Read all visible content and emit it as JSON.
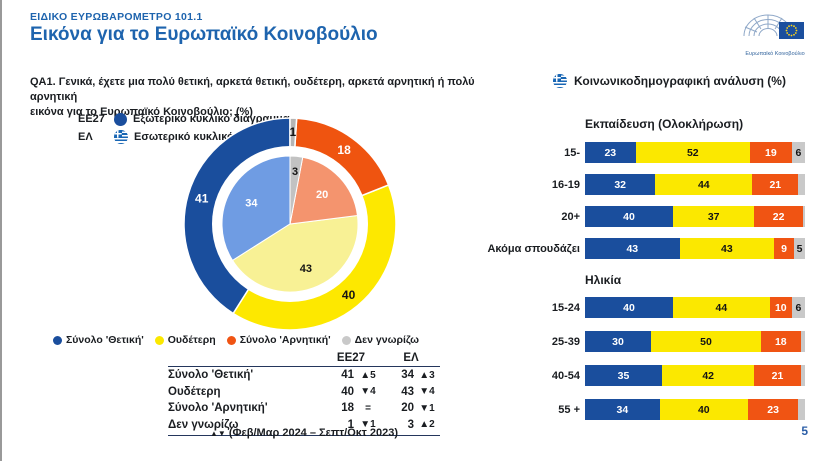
{
  "header": {
    "kicker": "ΕΙΔΙΚΟ ΕΥΡΩΒΑΡΟΜΕΤΡΟ 101.1",
    "title": "Εικόνα για το Ευρωπαϊκό Κοινοβούλιο",
    "logo_caption": "Ευρωπαϊκό Κοινοβούλιο"
  },
  "question": {
    "line1": "QA1. Γενικά, έχετε μια πολύ θετική, αρκετά θετική, ουδέτερη, αρκετά αρνητική ή πολύ αρνητική",
    "line2": "εικόνα για το Ευρωπαϊκό Κοινοβούλιο; (%)"
  },
  "donut_legend": [
    {
      "label": "ΕΕ27",
      "icon": "eu-dot",
      "text": "Εξωτερικό κυκλικό διάγραμμα"
    },
    {
      "label": "ΕΛ",
      "icon": "greek-flag",
      "text": "Εσωτερικό κυκλικό διάγραμμα"
    }
  ],
  "colors": {
    "brand_blue": "#1e64ae",
    "series": [
      "#1a4e9d",
      "#fbe800",
      "#f05413",
      "#c9c9c9"
    ],
    "donut_outer": [
      "#1a4e9d",
      "#fde800",
      "#ef5410",
      "#b5b5b5"
    ],
    "donut_inner": [
      "#6f9ce3",
      "#f8f195",
      "#f4946e",
      "#c2c2c2"
    ]
  },
  "chart_data": [
    {
      "type": "pie",
      "name": "image-of-european-parliament",
      "legend": [
        "Σύνολο 'Θετική'",
        "Ουδέτερη",
        "Σύνολο 'Αρνητική'",
        "Δεν γνωρίζω"
      ],
      "outer_ring": {
        "label": "ΕΕ27",
        "values": [
          41,
          40,
          18,
          1
        ]
      },
      "inner_ring": {
        "label": "ΕΛ",
        "values": [
          34,
          43,
          20,
          3
        ]
      }
    },
    {
      "type": "bar",
      "stacked": true,
      "name": "sociodemographic-analysis",
      "title": "Κοινωνικοδημογραφική ανάλυση (%)",
      "series_names": [
        "Σύνολο 'Θετική'",
        "Ουδέτερη",
        "Σύνολο 'Αρνητική'",
        "Δεν γνωρίζω"
      ],
      "label_min": 5,
      "groups": [
        {
          "title": "Εκπαίδευση (Ολοκλήρωση)",
          "rows": [
            {
              "label": "15-",
              "values": [
                23,
                52,
                19,
                6
              ]
            },
            {
              "label": "16-19",
              "values": [
                32,
                44,
                21,
                3
              ]
            },
            {
              "label": "20+",
              "values": [
                40,
                37,
                22,
                1
              ]
            },
            {
              "label": "Ακόμα σπουδάζει",
              "values": [
                43,
                43,
                9,
                5
              ]
            }
          ]
        },
        {
          "title": "Ηλικία",
          "rows": [
            {
              "label": "15-24",
              "values": [
                40,
                44,
                10,
                6
              ]
            },
            {
              "label": "25-39",
              "values": [
                30,
                50,
                18,
                2
              ]
            },
            {
              "label": "40-54",
              "values": [
                35,
                42,
                21,
                2
              ]
            },
            {
              "label": "55 +",
              "values": [
                34,
                40,
                23,
                3
              ]
            }
          ]
        }
      ]
    }
  ],
  "table": {
    "columns": [
      "ΕΕ27",
      "ΕΛ"
    ],
    "rows": [
      {
        "label": "Σύνολο 'Θετική'",
        "ee27": "41",
        "ee27_delta": "▲5",
        "el": "34",
        "el_delta": "▲3"
      },
      {
        "label": "Ουδέτερη",
        "ee27": "40",
        "ee27_delta": "▼4",
        "el": "43",
        "el_delta": "▼4"
      },
      {
        "label": "Σύνολο 'Αρνητική'",
        "ee27": "18",
        "ee27_delta": "=",
        "el": "20",
        "el_delta": "▼1"
      },
      {
        "label": "Δεν γνωρίζω",
        "ee27": "1",
        "ee27_delta": "▼1",
        "el": "3",
        "el_delta": "▲2"
      }
    ]
  },
  "footnote": {
    "symbols": "▲▼",
    "text": "(Φεβ/Μαρ 2024 – Σεπτ/Οκτ 2023)"
  },
  "right_panel": {
    "title": "Κοινωνικοδημογραφική ανάλυση (%)"
  },
  "page_number": "5"
}
